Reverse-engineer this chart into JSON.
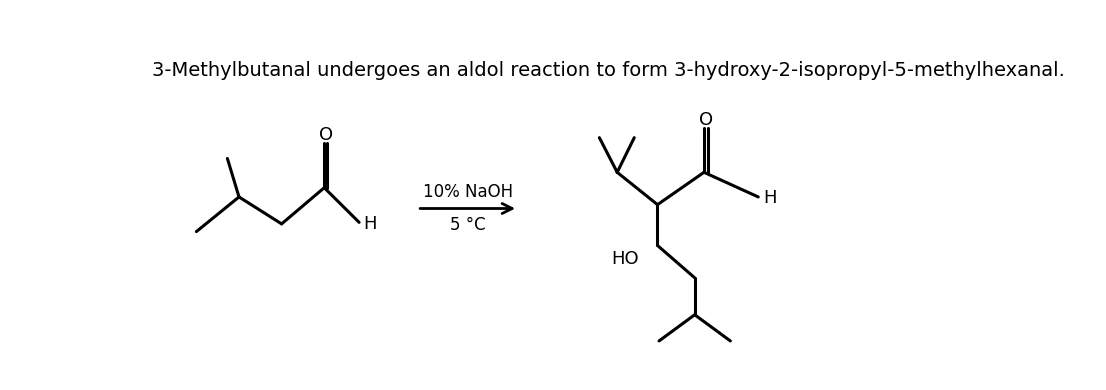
{
  "title": "3-Methylbutanal undergoes an aldol reaction to form 3-hydroxy-2-isopropyl-5-methylhexanal.",
  "title_fontsize": 14,
  "background_color": "#ffffff",
  "line_color": "#000000",
  "line_width": 2.2,
  "text_color": "#000000",
  "arrow_label_top": "10% NaOH",
  "arrow_label_bottom": "5 °C",
  "arrow_label_fontsize": 12
}
